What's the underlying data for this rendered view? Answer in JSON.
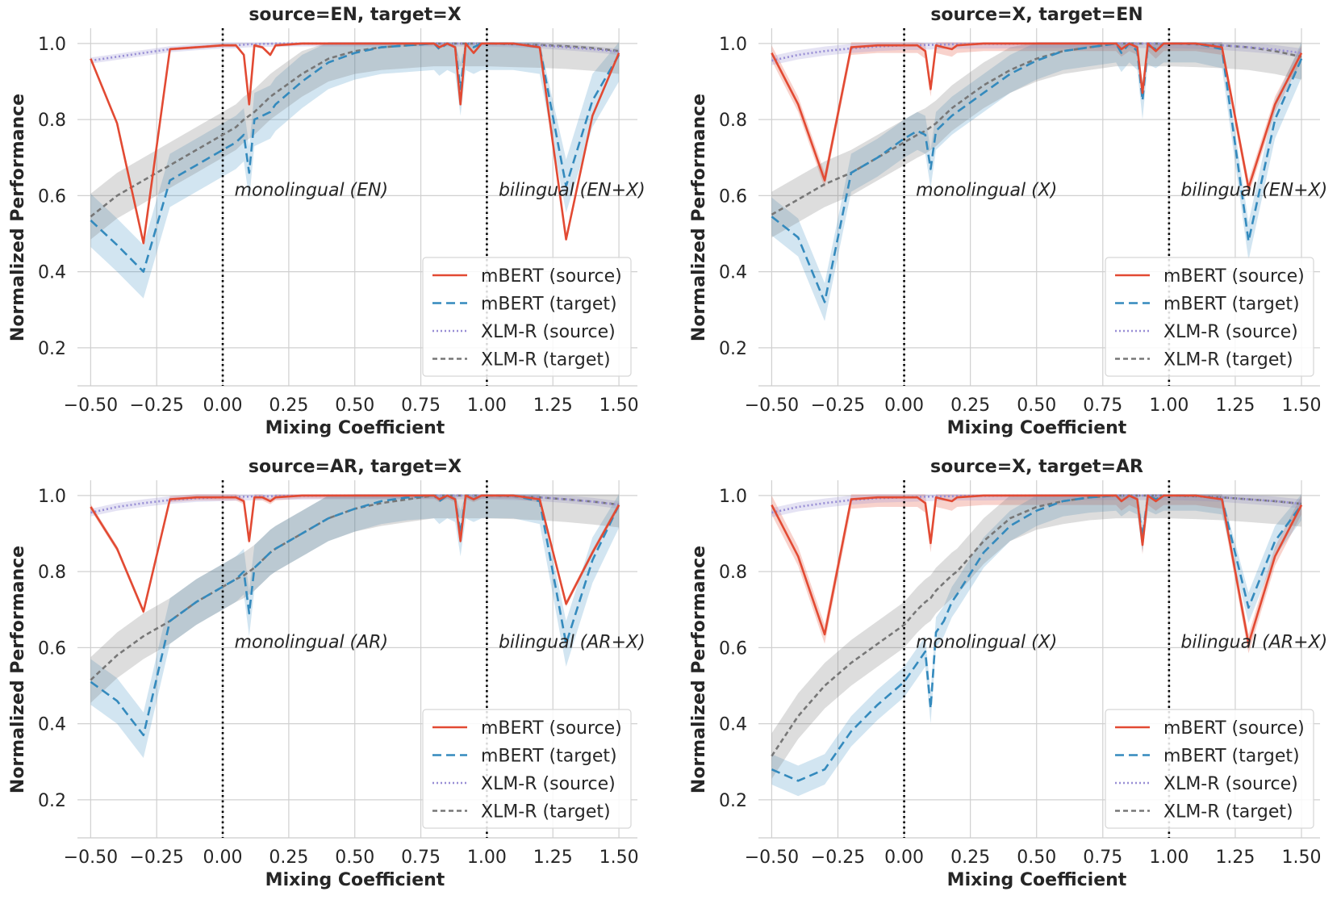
{
  "chart_data": [
    {
      "type": "line",
      "title": "source=EN, target=X",
      "xlabel": "Mixing Coefficient",
      "ylabel": "Normalized Performance",
      "xlim": [
        -0.55,
        1.57
      ],
      "ylim": [
        0.1,
        1.04
      ],
      "xticks": [
        -0.5,
        -0.25,
        0.0,
        0.25,
        0.5,
        0.75,
        1.0,
        1.25,
        1.5
      ],
      "xtick_labels": [
        "−0.50",
        "−0.25",
        "0.00",
        "0.25",
        "0.50",
        "0.75",
        "1.00",
        "1.25",
        "1.50"
      ],
      "yticks": [
        0.2,
        0.4,
        0.6,
        0.8,
        1.0
      ],
      "ytick_labels": [
        "0.2",
        "0.4",
        "0.6",
        "0.8",
        "1.0"
      ],
      "vlines": [
        0.0,
        1.0
      ],
      "region_labels": [
        {
          "x": 0.02,
          "text": "monolingual (EN)"
        },
        {
          "x": 1.02,
          "text": "bilingual (EN+X)"
        }
      ],
      "legend": {
        "position": "lower right",
        "entries": [
          "mBERT (source)",
          "mBERT (target)",
          "XLM-R (source)",
          "XLM-R (target)"
        ]
      },
      "x": [
        -0.5,
        -0.4,
        -0.3,
        -0.2,
        -0.1,
        0.0,
        0.05,
        0.08,
        0.1,
        0.12,
        0.15,
        0.18,
        0.2,
        0.3,
        0.4,
        0.5,
        0.6,
        0.7,
        0.8,
        0.82,
        0.85,
        0.88,
        0.9,
        0.92,
        0.95,
        0.98,
        1.0,
        1.1,
        1.2,
        1.3,
        1.4,
        1.5
      ],
      "series": [
        {
          "name": "mBERT (source)",
          "values": [
            0.96,
            0.79,
            0.475,
            0.985,
            0.99,
            0.995,
            0.995,
            0.97,
            0.84,
            0.995,
            0.99,
            0.97,
            0.995,
            1.0,
            1.0,
            1.0,
            1.0,
            1.0,
            1.0,
            0.99,
            1.0,
            0.99,
            0.84,
            1.0,
            0.975,
            1.0,
            1.0,
            1.0,
            0.99,
            0.485,
            0.81,
            0.975
          ],
          "band": 0.004
        },
        {
          "name": "mBERT (target)",
          "values": [
            0.535,
            0.47,
            0.4,
            0.64,
            0.68,
            0.72,
            0.74,
            0.76,
            0.66,
            0.8,
            0.81,
            0.82,
            0.84,
            0.9,
            0.95,
            0.975,
            0.99,
            0.995,
            1.0,
            0.985,
            1.0,
            0.99,
            0.88,
            1.0,
            0.99,
            1.0,
            1.0,
            1.0,
            0.99,
            0.625,
            0.85,
            0.97
          ],
          "band": 0.07
        },
        {
          "name": "XLM-R (source)",
          "values": [
            0.955,
            0.965,
            0.975,
            0.985,
            0.99,
            0.995,
            0.995,
            0.997,
            0.998,
            0.998,
            0.999,
            0.999,
            1.0,
            1.0,
            1.0,
            1.0,
            1.0,
            1.0,
            1.0,
            1.0,
            1.0,
            1.0,
            1.0,
            1.0,
            1.0,
            1.0,
            1.0,
            0.998,
            0.995,
            0.99,
            0.985,
            0.978
          ],
          "band": 0.008
        },
        {
          "name": "XLM-R (target)",
          "values": [
            0.545,
            0.6,
            0.64,
            0.68,
            0.72,
            0.76,
            0.78,
            0.8,
            0.81,
            0.82,
            0.84,
            0.86,
            0.87,
            0.92,
            0.96,
            0.98,
            0.99,
            0.995,
            1.0,
            1.0,
            1.0,
            1.0,
            1.0,
            1.0,
            1.0,
            1.0,
            1.0,
            0.998,
            0.996,
            0.993,
            0.988,
            0.98
          ],
          "band": 0.06
        }
      ]
    },
    {
      "type": "line",
      "title": "source=X, target=EN",
      "xlabel": "Mixing Coefficient",
      "ylabel": "Normalized Performance",
      "xlim": [
        -0.55,
        1.57
      ],
      "ylim": [
        0.1,
        1.04
      ],
      "xticks": [
        -0.5,
        -0.25,
        0.0,
        0.25,
        0.5,
        0.75,
        1.0,
        1.25,
        1.5
      ],
      "xtick_labels": [
        "−0.50",
        "−0.25",
        "0.00",
        "0.25",
        "0.50",
        "0.75",
        "1.00",
        "1.25",
        "1.50"
      ],
      "yticks": [
        0.2,
        0.4,
        0.6,
        0.8,
        1.0
      ],
      "ytick_labels": [
        "0.2",
        "0.4",
        "0.6",
        "0.8",
        "1.0"
      ],
      "vlines": [
        0.0,
        1.0
      ],
      "region_labels": [
        {
          "x": 0.02,
          "text": "monolingual (X)"
        },
        {
          "x": 1.02,
          "text": "bilingual (EN+X)"
        }
      ],
      "legend": {
        "position": "lower right",
        "entries": [
          "mBERT (source)",
          "mBERT (target)",
          "XLM-R (source)",
          "XLM-R (target)"
        ]
      },
      "x": [
        -0.5,
        -0.4,
        -0.3,
        -0.2,
        -0.1,
        0.0,
        0.05,
        0.08,
        0.1,
        0.12,
        0.15,
        0.18,
        0.2,
        0.3,
        0.4,
        0.5,
        0.6,
        0.7,
        0.8,
        0.82,
        0.85,
        0.88,
        0.9,
        0.92,
        0.95,
        0.98,
        1.0,
        1.1,
        1.2,
        1.3,
        1.4,
        1.5
      ],
      "series": [
        {
          "name": "mBERT (source)",
          "values": [
            0.975,
            0.84,
            0.64,
            0.99,
            0.995,
            0.995,
            0.995,
            0.98,
            0.88,
            0.995,
            0.99,
            0.985,
            0.995,
            1.0,
            1.0,
            1.0,
            1.0,
            1.0,
            1.0,
            0.985,
            1.0,
            0.99,
            0.87,
            1.0,
            0.98,
            1.0,
            1.0,
            1.0,
            0.99,
            0.62,
            0.84,
            0.975
          ],
          "band": 0.02
        },
        {
          "name": "mBERT (target)",
          "values": [
            0.545,
            0.49,
            0.32,
            0.66,
            0.7,
            0.75,
            0.77,
            0.76,
            0.67,
            0.77,
            0.79,
            0.81,
            0.82,
            0.87,
            0.92,
            0.955,
            0.98,
            0.99,
            1.0,
            0.975,
            1.0,
            0.98,
            0.85,
            0.995,
            0.985,
            1.0,
            1.0,
            1.0,
            0.985,
            0.48,
            0.8,
            0.96
          ],
          "band": 0.05
        },
        {
          "name": "XLM-R (source)",
          "values": [
            0.955,
            0.97,
            0.98,
            0.987,
            0.992,
            0.995,
            0.995,
            0.996,
            0.996,
            0.997,
            0.997,
            0.998,
            0.998,
            0.999,
            0.999,
            1.0,
            1.0,
            1.0,
            1.0,
            1.0,
            1.0,
            1.0,
            1.0,
            1.0,
            1.0,
            1.0,
            1.0,
            0.998,
            0.995,
            0.99,
            0.984,
            0.975
          ],
          "band": 0.012
        },
        {
          "name": "XLM-R (target)",
          "values": [
            0.55,
            0.59,
            0.63,
            0.66,
            0.7,
            0.74,
            0.76,
            0.77,
            0.78,
            0.79,
            0.81,
            0.83,
            0.84,
            0.89,
            0.93,
            0.96,
            0.98,
            0.99,
            1.0,
            1.0,
            1.0,
            1.0,
            1.0,
            1.0,
            1.0,
            1.0,
            1.0,
            0.998,
            0.995,
            0.99,
            0.98,
            0.965
          ],
          "band": 0.06
        }
      ]
    },
    {
      "type": "line",
      "title": "source=AR, target=X",
      "xlabel": "Mixing Coefficient",
      "ylabel": "Normalized Performance",
      "xlim": [
        -0.55,
        1.57
      ],
      "ylim": [
        0.1,
        1.04
      ],
      "xticks": [
        -0.5,
        -0.25,
        0.0,
        0.25,
        0.5,
        0.75,
        1.0,
        1.25,
        1.5
      ],
      "xtick_labels": [
        "−0.50",
        "−0.25",
        "0.00",
        "0.25",
        "0.50",
        "0.75",
        "1.00",
        "1.25",
        "1.50"
      ],
      "yticks": [
        0.2,
        0.4,
        0.6,
        0.8,
        1.0
      ],
      "ytick_labels": [
        "0.2",
        "0.4",
        "0.6",
        "0.8",
        "1.0"
      ],
      "vlines": [
        0.0,
        1.0
      ],
      "region_labels": [
        {
          "x": 0.02,
          "text": "monolingual (AR)"
        },
        {
          "x": 1.02,
          "text": "bilingual (AR+X)"
        }
      ],
      "legend": {
        "position": "lower right",
        "entries": [
          "mBERT (source)",
          "mBERT (target)",
          "XLM-R (source)",
          "XLM-R (target)"
        ]
      },
      "x": [
        -0.5,
        -0.4,
        -0.3,
        -0.2,
        -0.1,
        0.0,
        0.05,
        0.08,
        0.1,
        0.12,
        0.15,
        0.18,
        0.2,
        0.3,
        0.4,
        0.5,
        0.6,
        0.7,
        0.8,
        0.82,
        0.85,
        0.88,
        0.9,
        0.92,
        0.95,
        0.98,
        1.0,
        1.1,
        1.2,
        1.3,
        1.4,
        1.5
      ],
      "series": [
        {
          "name": "mBERT (source)",
          "values": [
            0.97,
            0.86,
            0.695,
            0.99,
            0.995,
            0.995,
            0.995,
            0.985,
            0.88,
            0.995,
            0.995,
            0.985,
            0.995,
            1.0,
            1.0,
            1.0,
            1.0,
            1.0,
            1.0,
            0.99,
            1.0,
            0.99,
            0.88,
            1.0,
            0.99,
            1.0,
            1.0,
            1.0,
            0.99,
            0.715,
            0.85,
            0.975
          ],
          "band": 0.008
        },
        {
          "name": "mBERT (target)",
          "values": [
            0.51,
            0.46,
            0.37,
            0.67,
            0.72,
            0.76,
            0.78,
            0.8,
            0.69,
            0.81,
            0.83,
            0.85,
            0.86,
            0.9,
            0.94,
            0.965,
            0.985,
            0.995,
            1.0,
            0.985,
            1.0,
            0.99,
            0.9,
            1.0,
            0.99,
            1.0,
            1.0,
            1.0,
            0.985,
            0.61,
            0.83,
            0.975
          ],
          "band": 0.06
        },
        {
          "name": "XLM-R (source)",
          "values": [
            0.955,
            0.97,
            0.98,
            0.988,
            0.993,
            0.995,
            0.996,
            0.997,
            0.997,
            0.998,
            0.998,
            0.998,
            0.999,
            0.999,
            1.0,
            1.0,
            1.0,
            1.0,
            1.0,
            1.0,
            1.0,
            1.0,
            1.0,
            1.0,
            1.0,
            1.0,
            1.0,
            0.998,
            0.995,
            0.99,
            0.984,
            0.975
          ],
          "band": 0.01
        },
        {
          "name": "XLM-R (target)",
          "values": [
            0.515,
            0.58,
            0.63,
            0.67,
            0.72,
            0.76,
            0.78,
            0.79,
            0.8,
            0.81,
            0.83,
            0.85,
            0.86,
            0.9,
            0.94,
            0.965,
            0.98,
            0.99,
            1.0,
            1.0,
            1.0,
            1.0,
            1.0,
            1.0,
            1.0,
            1.0,
            1.0,
            0.998,
            0.995,
            0.99,
            0.984,
            0.976
          ],
          "band": 0.06
        }
      ]
    },
    {
      "type": "line",
      "title": "source=X, target=AR",
      "xlabel": "Mixing Coefficient",
      "ylabel": "Normalized Performance",
      "xlim": [
        -0.55,
        1.57
      ],
      "ylim": [
        0.1,
        1.04
      ],
      "xticks": [
        -0.5,
        -0.25,
        0.0,
        0.25,
        0.5,
        0.75,
        1.0,
        1.25,
        1.5
      ],
      "xtick_labels": [
        "−0.50",
        "−0.25",
        "0.00",
        "0.25",
        "0.50",
        "0.75",
        "1.00",
        "1.25",
        "1.50"
      ],
      "yticks": [
        0.2,
        0.4,
        0.6,
        0.8,
        1.0
      ],
      "ytick_labels": [
        "0.2",
        "0.4",
        "0.6",
        "0.8",
        "1.0"
      ],
      "vlines": [
        0.0,
        1.0
      ],
      "region_labels": [
        {
          "x": 0.02,
          "text": "monolingual (X)"
        },
        {
          "x": 1.02,
          "text": "bilingual (AR+X)"
        }
      ],
      "legend": {
        "position": "lower right",
        "entries": [
          "mBERT (source)",
          "mBERT (target)",
          "XLM-R (source)",
          "XLM-R (target)"
        ]
      },
      "x": [
        -0.5,
        -0.4,
        -0.3,
        -0.2,
        -0.1,
        0.0,
        0.05,
        0.08,
        0.1,
        0.12,
        0.15,
        0.18,
        0.2,
        0.3,
        0.4,
        0.5,
        0.6,
        0.7,
        0.8,
        0.82,
        0.85,
        0.88,
        0.9,
        0.92,
        0.95,
        0.98,
        1.0,
        1.1,
        1.2,
        1.3,
        1.4,
        1.5
      ],
      "series": [
        {
          "name": "mBERT (source)",
          "values": [
            0.975,
            0.84,
            0.635,
            0.99,
            0.995,
            0.995,
            0.995,
            0.98,
            0.875,
            0.995,
            0.99,
            0.985,
            0.995,
            1.0,
            1.0,
            1.0,
            1.0,
            1.0,
            1.0,
            0.985,
            1.0,
            0.99,
            0.87,
            1.0,
            0.985,
            1.0,
            1.0,
            1.0,
            0.99,
            0.61,
            0.84,
            0.975
          ],
          "band": 0.025
        },
        {
          "name": "mBERT (target)",
          "values": [
            0.28,
            0.25,
            0.28,
            0.38,
            0.45,
            0.51,
            0.56,
            0.59,
            0.44,
            0.64,
            0.67,
            0.72,
            0.74,
            0.85,
            0.92,
            0.96,
            0.985,
            0.995,
            1.0,
            0.985,
            1.0,
            0.99,
            0.89,
            1.0,
            0.99,
            1.0,
            1.0,
            1.0,
            0.99,
            0.705,
            0.88,
            0.975
          ],
          "band": 0.04
        },
        {
          "name": "XLM-R (source)",
          "values": [
            0.955,
            0.97,
            0.98,
            0.988,
            0.993,
            0.995,
            0.996,
            0.997,
            0.997,
            0.998,
            0.998,
            0.998,
            0.999,
            0.999,
            1.0,
            1.0,
            1.0,
            1.0,
            1.0,
            1.0,
            1.0,
            1.0,
            1.0,
            1.0,
            1.0,
            1.0,
            1.0,
            0.998,
            0.995,
            0.99,
            0.985,
            0.978
          ],
          "band": 0.012
        },
        {
          "name": "XLM-R (target)",
          "values": [
            0.315,
            0.42,
            0.5,
            0.56,
            0.61,
            0.66,
            0.7,
            0.72,
            0.73,
            0.75,
            0.77,
            0.79,
            0.8,
            0.88,
            0.94,
            0.97,
            0.985,
            0.995,
            1.0,
            1.0,
            1.0,
            1.0,
            1.0,
            1.0,
            1.0,
            1.0,
            1.0,
            0.998,
            0.995,
            0.99,
            0.985,
            0.978
          ],
          "band": 0.06
        }
      ]
    }
  ],
  "colors": {
    "mbert_source": "#e24a33",
    "mbert_target": "#348abd",
    "xlmr_source": "#988ed5",
    "xlmr_target": "#777777",
    "grid": "#d0d0d0",
    "vline": "#000000"
  }
}
